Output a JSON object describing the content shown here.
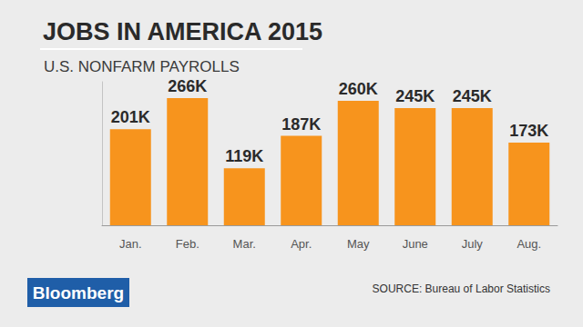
{
  "chart_data": {
    "type": "bar",
    "title": "JOBS IN AMERICA 2015",
    "subtitle": "U.S. NONFARM PAYROLLS",
    "categories": [
      "Jan.",
      "Feb.",
      "Mar.",
      "Apr.",
      "May",
      "June",
      "July",
      "Aug."
    ],
    "values": [
      201,
      266,
      119,
      187,
      260,
      245,
      245,
      173
    ],
    "value_labels": [
      "201K",
      "266K",
      "119K",
      "187K",
      "260K",
      "245K",
      "245K",
      "173K"
    ],
    "color": "#f7941d",
    "ylim": [
      0,
      300
    ],
    "grid": false,
    "data_labels": true,
    "tick_labels": "x",
    "source": "SOURCE: Bureau of Labor Statistics",
    "logo": "Bloomberg"
  }
}
